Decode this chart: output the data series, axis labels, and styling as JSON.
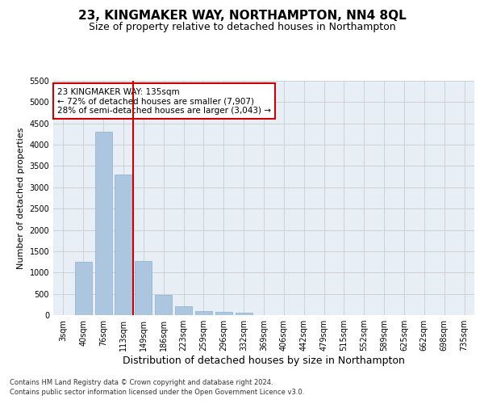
{
  "title": "23, KINGMAKER WAY, NORTHAMPTON, NN4 8QL",
  "subtitle": "Size of property relative to detached houses in Northampton",
  "xlabel": "Distribution of detached houses by size in Northampton",
  "ylabel": "Number of detached properties",
  "footer1": "Contains HM Land Registry data © Crown copyright and database right 2024.",
  "footer2": "Contains public sector information licensed under the Open Government Licence v3.0.",
  "categories": [
    "3sqm",
    "40sqm",
    "76sqm",
    "113sqm",
    "149sqm",
    "186sqm",
    "223sqm",
    "259sqm",
    "296sqm",
    "332sqm",
    "369sqm",
    "406sqm",
    "442sqm",
    "479sqm",
    "515sqm",
    "552sqm",
    "589sqm",
    "625sqm",
    "662sqm",
    "698sqm",
    "735sqm"
  ],
  "values": [
    0,
    1250,
    4300,
    3300,
    1270,
    480,
    200,
    100,
    70,
    50,
    0,
    0,
    0,
    0,
    0,
    0,
    0,
    0,
    0,
    0,
    0
  ],
  "bar_color": "#adc6e0",
  "bar_edge_color": "#8ab0cc",
  "vline_color": "#cc0000",
  "annotation_text": "23 KINGMAKER WAY: 135sqm\n← 72% of detached houses are smaller (7,907)\n28% of semi-detached houses are larger (3,043) →",
  "annotation_box_color": "#ffffff",
  "annotation_box_edge": "#cc0000",
  "ylim": [
    0,
    5500
  ],
  "yticks": [
    0,
    500,
    1000,
    1500,
    2000,
    2500,
    3000,
    3500,
    4000,
    4500,
    5000,
    5500
  ],
  "grid_color": "#cccccc",
  "bg_color": "#e8eef5",
  "title_fontsize": 11,
  "subtitle_fontsize": 9,
  "ylabel_fontsize": 8,
  "xlabel_fontsize": 9,
  "tick_fontsize": 7,
  "footer_fontsize": 6
}
